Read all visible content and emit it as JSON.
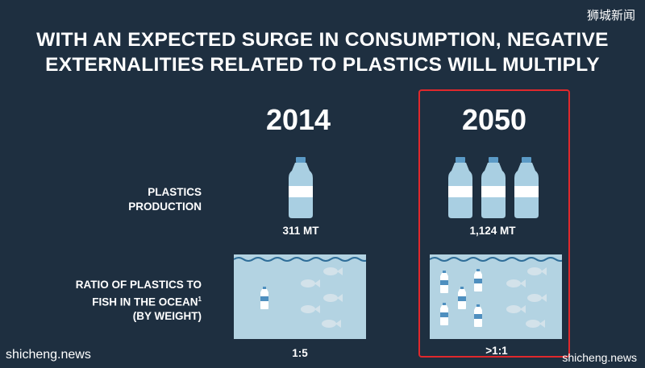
{
  "title": {
    "line1": "WITH AN EXPECTED SURGE IN CONSUMPTION, NEGATIVE",
    "line2": "EXTERNALITIES  RELATED TO PLASTICS WILL MULTIPLY"
  },
  "labels": {
    "production_line1": "PLASTICS",
    "production_line2": "PRODUCTION",
    "ratio_line1": "RATIO OF PLASTICS TO",
    "ratio_line2": "FISH IN THE OCEAN",
    "ratio_sup": "1",
    "ratio_line3": "(BY WEIGHT)"
  },
  "columns": [
    {
      "year": "2014",
      "production": "311 MT",
      "bottles": 1,
      "ratio": "1:5"
    },
    {
      "year": "2050",
      "production": "1,124 MT",
      "bottles": 3,
      "ratio": ">1:1"
    }
  ],
  "watermarks": {
    "top_right": "狮城新闻",
    "bottom_left": "shicheng.news",
    "bottom_right": "shicheng.news"
  },
  "colors": {
    "background": "#1e2f40",
    "water": "#b3d3e2",
    "highlight": "#e0282c"
  }
}
